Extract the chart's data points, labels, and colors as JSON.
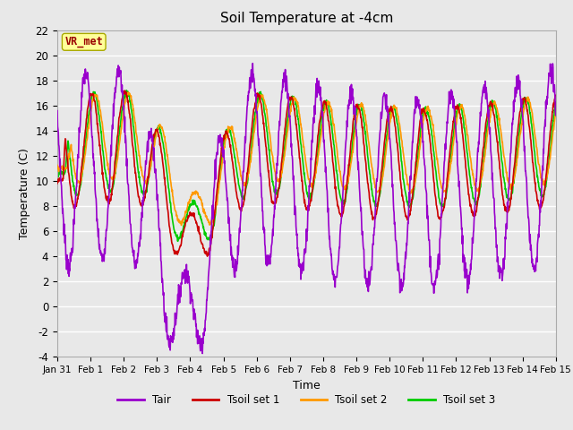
{
  "title": "Soil Temperature at -4cm",
  "xlabel": "Time",
  "ylabel": "Temperature (C)",
  "ylim": [
    -4,
    22
  ],
  "yticks": [
    -4,
    -2,
    0,
    2,
    4,
    6,
    8,
    10,
    12,
    14,
    16,
    18,
    20,
    22
  ],
  "x_labels": [
    "Jan 31",
    "Feb 1",
    "Feb 2",
    "Feb 3",
    "Feb 4",
    "Feb 5",
    "Feb 6",
    "Feb 7",
    "Feb 8",
    "Feb 9",
    "Feb 10",
    "Feb 11",
    "Feb 12",
    "Feb 13",
    "Feb 14",
    "Feb 15"
  ],
  "line_colors": {
    "Tair": "#9900cc",
    "Tsoil set 1": "#cc0000",
    "Tsoil set 2": "#ff9900",
    "Tsoil set 3": "#00cc00"
  },
  "legend_loc": "lower center",
  "legend_ncol": 4,
  "annotation_text": "VR_met",
  "annotation_color": "#990000",
  "annotation_bg": "#ffff99",
  "plot_bg_color": "#e8e8e8",
  "grid_color": "#ffffff",
  "n_points": 1440,
  "n_days": 15
}
